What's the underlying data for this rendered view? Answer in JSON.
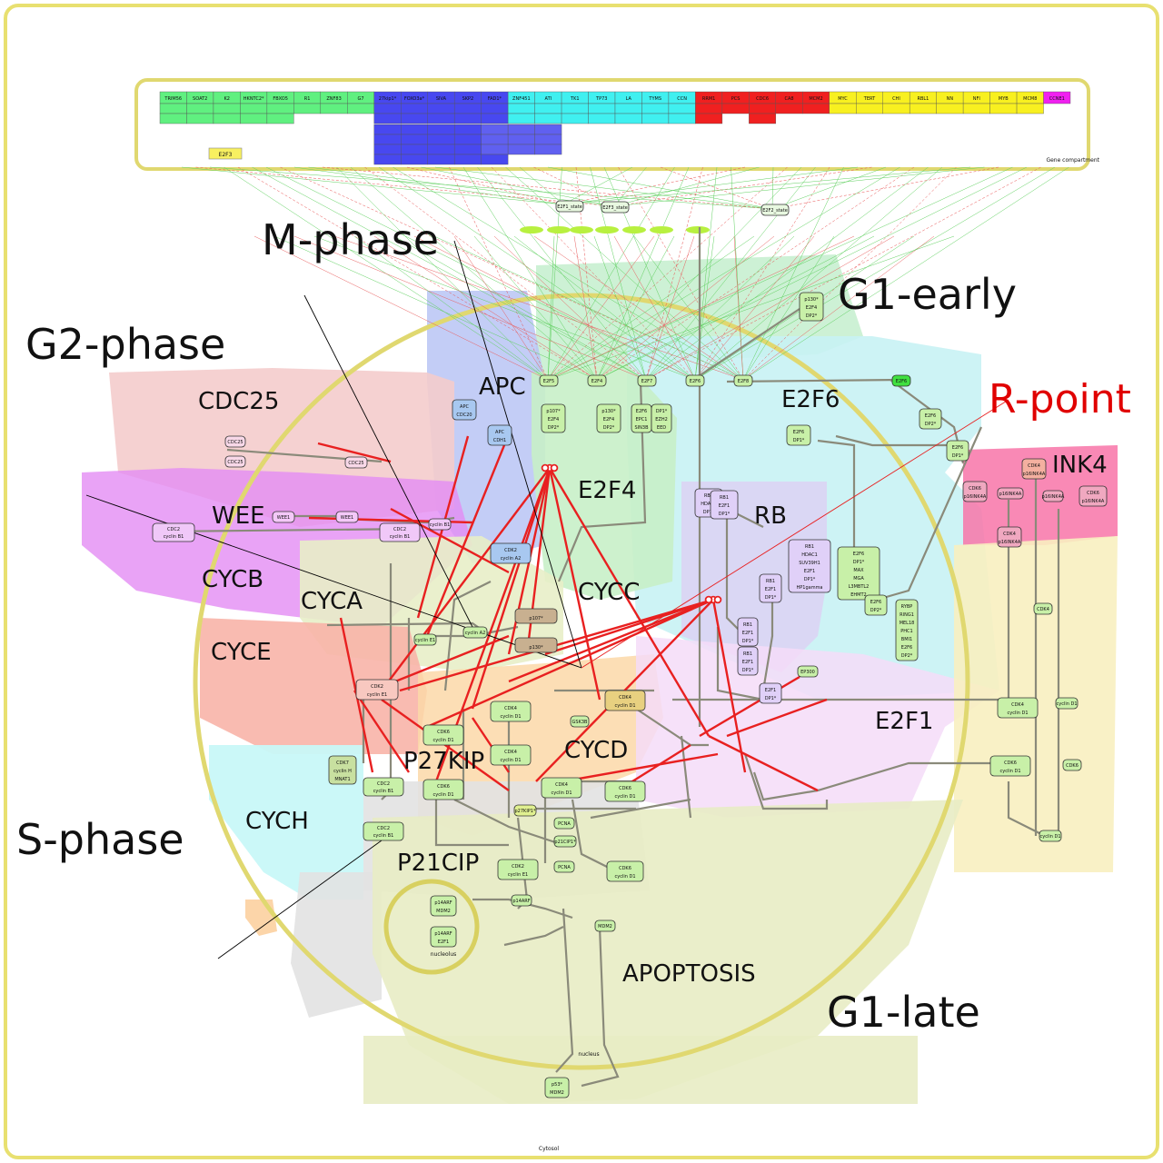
{
  "phases": {
    "m_phase": "M-phase",
    "g1_early": "G1-early",
    "g2_phase": "G2-phase",
    "s_phase": "S-phase",
    "g1_late": "G1-late",
    "r_point": "R-point"
  },
  "regions": {
    "cdc25": "CDC25",
    "apc": "APC",
    "e2f6": "E2F6",
    "ink4": "INK4",
    "wee": "WEE",
    "e2f4": "E2F4",
    "rb": "RB",
    "cycb": "CYCB",
    "cyca": "CYCA",
    "cycc": "CYCC",
    "cyce": "CYCE",
    "e2f1": "E2F1",
    "p27kip": "P27KIP",
    "cycd": "CYCD",
    "cych": "CYCH",
    "p21cip": "P21CIP",
    "apoptosis": "APOPTOSIS"
  },
  "compartments": {
    "gene": "Gene compartment",
    "nucleus": "nucleus",
    "nucleolus": "nucleolus",
    "cytosol": "Cytosol"
  },
  "gene_row1": [
    "TRIM56",
    "SOAT2",
    "K2",
    "HKNTC2*",
    "FBXO5",
    "R1",
    "ZNF83",
    "G7",
    "27kip1*",
    "FOXO3a*",
    "SIVA",
    "SKP2",
    "FAD1*",
    "ZNF451",
    "ATI",
    "TK1",
    "TP73",
    "LA",
    "TYMS",
    "CCN",
    "RRM1",
    "PCS",
    "CDC6",
    "CA8",
    "MCM2",
    "MYC",
    "TERT",
    "CHI",
    "RBL1",
    "NN",
    "NFI",
    "MYB",
    "MCM8",
    "CCNE1"
  ],
  "gene_e2f3": "E2F3",
  "nodes": {
    "e2f1_state": "E2F1_state",
    "e2f3_state": "E2F3_state",
    "e2f2_state": "E2F2_state",
    "e2f5": "E2F5",
    "e2f4_n": "E2F4",
    "e2f7": "E2F7",
    "e2f6_n": "E2F6",
    "e2f8": "E2F8",
    "e2f6_top": "E2F6",
    "p130_e2f4": [
      "p130*",
      "E2F4",
      "DP2*"
    ],
    "p107_e2f4": [
      "p107*",
      "E2F4",
      "DP2*"
    ],
    "p130_e2f4b": [
      "p130*",
      "E2F4",
      "DP2*"
    ],
    "e2f6_dp1": [
      "E2F6",
      "DP1*"
    ],
    "e2f6_dp2": [
      "E2F6",
      "DP2*"
    ],
    "e2f6_dp1b": [
      "E2F6",
      "DP1*"
    ],
    "e2f6_cx": [
      "E2F6",
      "EPC1",
      "SIN3B"
    ],
    "e2f6_cx2": [
      "DP1*",
      "EZH2",
      "EED"
    ],
    "apc_cdc20": [
      "APC",
      "CDC20"
    ],
    "apc_cdh1": [
      "APC",
      "CDH1"
    ],
    "cdc25a": "CDC25",
    "cdc25b": "CDC25",
    "cdc25c": "CDC25",
    "wee1": "WEE1",
    "wee1b": "WEE1",
    "cdc2_cb1": [
      "CDC2",
      "cyclin B1"
    ],
    "cdc2_cb1b": [
      "CDC2",
      "cyclin B1"
    ],
    "cyclin_b1": "cyclin B1",
    "cdk2_ca2": [
      "CDK2",
      "cyclin A2"
    ],
    "cyclin_a2": "cyclin A2",
    "p107_box": [
      "p107*"
    ],
    "p130_box": [
      "p130*"
    ],
    "cdk2_ce1": [
      "CDK2",
      "cyclin E1"
    ],
    "cyclin_e1": "cyclin E1",
    "cdk7": [
      "CDK7",
      "cyclin H",
      "MNAT1"
    ],
    "cdc2_cb1c": [
      "CDC2",
      "cyclin B1"
    ],
    "cdc2_cb1d": [
      "CDC2",
      "cyclin B1"
    ],
    "cdk4_d1": [
      "CDK4",
      "cyclin D1"
    ],
    "cdk6_d1": [
      "CDK6",
      "cyclin D1"
    ],
    "p27kip1": "p27KIP1*",
    "pcna": "PCNA",
    "p21cip1": "p21CIP1*",
    "gsk3b": "GSK3B",
    "ep300": "EP300",
    "rb_hdac": [
      "RB1",
      "HDAC1",
      "DP1*"
    ],
    "rb_e2f": [
      "RB1",
      "E2F1",
      "DP1*"
    ],
    "rb_big": [
      "RB1",
      "HDAC1",
      "SUV39H1",
      "E2F1",
      "DP1*",
      "HP1gamma"
    ],
    "e2f6_max": [
      "E2F6",
      "DP1*",
      "MAX",
      "MGA",
      "L3MBTL2",
      "EHMT2"
    ],
    "e2f6_rybp": [
      "RYBP",
      "RING1",
      "MEL18",
      "PHC1",
      "BMI1",
      "E2F6",
      "DP2*"
    ],
    "e2f1_dp": [
      "E2F1",
      "DP1*"
    ],
    "p14arf_mdm2": [
      "p14ARF",
      "MDM2"
    ],
    "p14arf_e2f1": [
      "p14ARF",
      "E2F1"
    ],
    "mdm2": "MDM2",
    "p14arf": "p14ARF",
    "p53_mdm2": [
      "p53*",
      "MDM2"
    ],
    "cdk6_ink4": [
      "CDK6",
      "p16INK4A"
    ],
    "cdk4_ink4": [
      "CDK4",
      "p16INK4A"
    ],
    "p16ink4": "p16INK4A",
    "cdk6_ink4b": [
      "CDK6",
      "p16INK4A"
    ],
    "cdk4": "CDK4",
    "cdk6": "CDK6",
    "cdk4_d1r": [
      "CDK4",
      "cyclin D1"
    ],
    "cdk6_d1r": [
      "CDK6",
      "cyclin D1"
    ],
    "cyclin_d1": "cyclin D1",
    "cyclin_d1b": "cyclin D1"
  },
  "colors": {
    "border": "#e8e070",
    "g2_pink": "#f4c8c8",
    "magenta": "#e080f0",
    "blue": "#b8c8f8",
    "green": "#c8f0d0",
    "cyan": "#c0f0f4",
    "yellow": "#f8f0c0",
    "salmon": "#f8b8a8",
    "orange": "#fcd8a8",
    "lavender": "#e8d8f8",
    "grey": "#e0e0e0",
    "olive": "#e8ecc0",
    "red_line": "#e82020",
    "grey_line": "#8a8a7a",
    "node_green": "#c8f0a8",
    "node_blue": "#a8c8f0",
    "node_lav": "#e0d0f8",
    "node_pink": "#f0a8c0"
  }
}
